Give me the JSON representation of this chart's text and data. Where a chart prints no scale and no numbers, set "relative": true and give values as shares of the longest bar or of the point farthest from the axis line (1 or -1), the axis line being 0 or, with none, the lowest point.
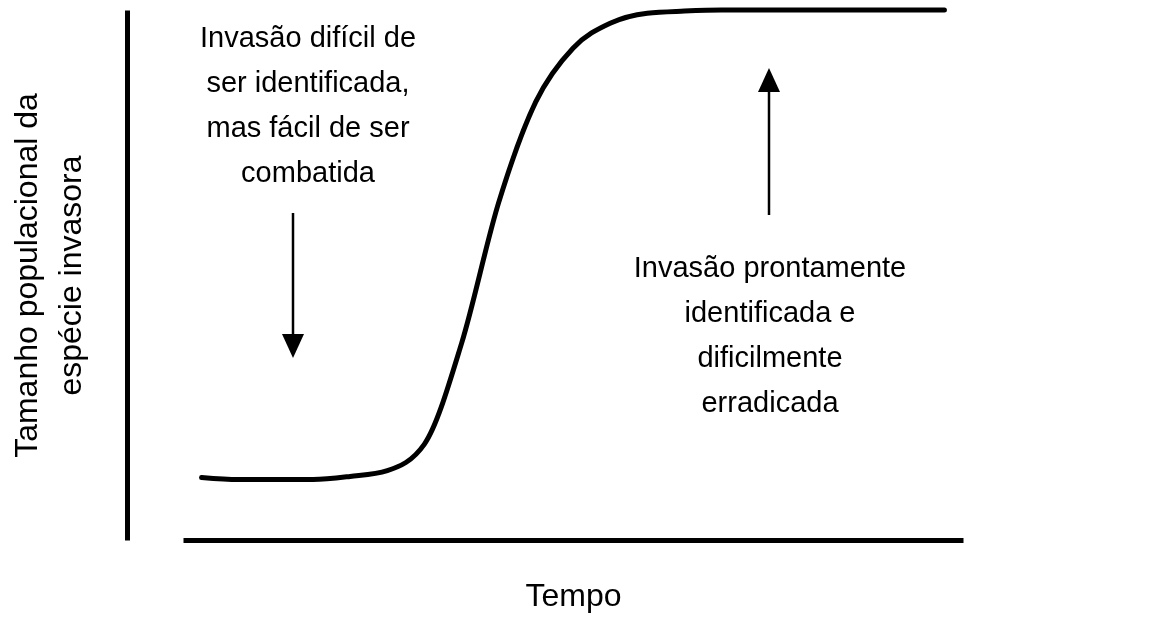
{
  "chart_data": {
    "type": "line",
    "relative": true,
    "xlabel": "Tempo",
    "ylabel": "Tamanho populacional da\nespécie invasora",
    "categories": [
      null,
      null,
      null,
      null,
      null,
      null,
      null,
      null,
      null,
      null,
      null,
      null,
      null,
      null,
      null,
      null,
      null,
      null,
      null,
      null,
      null
    ],
    "series": [
      {
        "color": "#000000",
        "values": [
          0.118,
          0.114,
          0.114,
          0.114,
          0.12,
          0.131,
          0.181,
          0.371,
          0.637,
          0.827,
          0.928,
          0.975,
          0.994,
          0.998,
          1,
          1,
          1,
          1,
          1,
          1,
          1
        ]
      }
    ],
    "annotations": [
      "Invasão difícil de\nser identificada,\nmas fácil de ser\ncombatida",
      "Invasão prontamente\nidentificada e\ndificilmente\nerradicada"
    ]
  }
}
